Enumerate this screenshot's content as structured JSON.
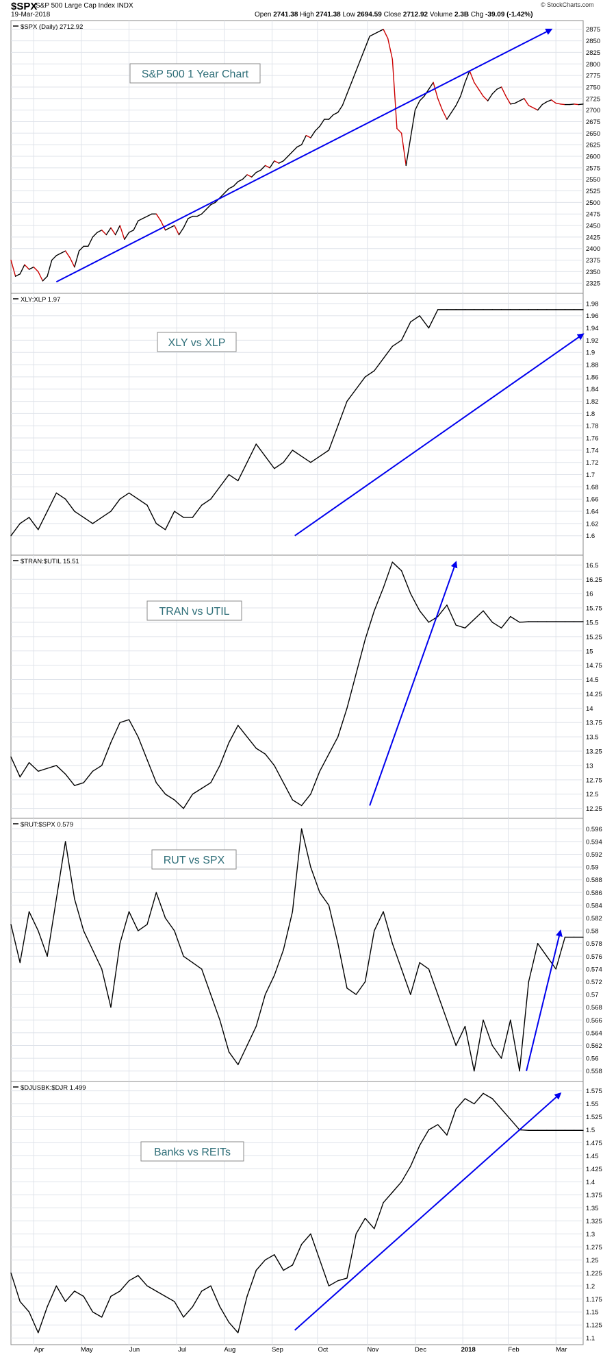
{
  "header": {
    "symbol": "$SPX",
    "description": "S&P 500 Large Cap Index INDX",
    "date": "19-Mar-2018",
    "open_label": "Open",
    "open": "2741.38",
    "high_label": "High",
    "high": "2741.38",
    "low_label": "Low",
    "low": "2694.59",
    "close_label": "Close",
    "close": "2712.92",
    "volume_label": "Volume",
    "volume": "2.3B",
    "chg_label": "Chg",
    "chg": "-39.09 (-1.42%)",
    "credit": "© StockCharts.com"
  },
  "colors": {
    "price_line": "#000000",
    "down_line": "#cc0000",
    "trend_arrow": "#0000ee",
    "grid": "#dfe3ea",
    "annotation_text": "#2e6e78",
    "axis_text": "#000000"
  },
  "chart_data": [
    {
      "type": "line",
      "legend": "$SPX (Daily) 2712.92",
      "annotation": "S&P 500 1 Year Chart",
      "ylim": [
        2312,
        2885
      ],
      "yticks": [
        2325,
        2350,
        2375,
        2400,
        2425,
        2450,
        2475,
        2500,
        2525,
        2550,
        2575,
        2600,
        2625,
        2650,
        2675,
        2700,
        2725,
        2750,
        2775,
        2800,
        2825,
        2850,
        2875
      ],
      "x": [
        0,
        2,
        4,
        6,
        8,
        10,
        12,
        14,
        16,
        18,
        20,
        22,
        24,
        26,
        28,
        30,
        32,
        34,
        36,
        38,
        40,
        42,
        44,
        46,
        48,
        50,
        52,
        54,
        56,
        58,
        60,
        62,
        64,
        66,
        68,
        70,
        72,
        74,
        76,
        78,
        80,
        82,
        84,
        86,
        88,
        90,
        92,
        94,
        96,
        98,
        100,
        102,
        104,
        106,
        108,
        110,
        112,
        114,
        116,
        118,
        120,
        122,
        124,
        126,
        128,
        130,
        132,
        134,
        136,
        138,
        140,
        142,
        144,
        146,
        148,
        150,
        152,
        154,
        156,
        158,
        160,
        162,
        164,
        166,
        168,
        170,
        172,
        174,
        176,
        178,
        180,
        182,
        184,
        186,
        188,
        190,
        192,
        194,
        196,
        198,
        200,
        202,
        204,
        206,
        208,
        210,
        212,
        214,
        216,
        218,
        220,
        222,
        224,
        226,
        228,
        230,
        232,
        234,
        236,
        238,
        240,
        242,
        244,
        246,
        248,
        250,
        252
      ],
      "values": [
        2375,
        2340,
        2345,
        2365,
        2355,
        2360,
        2350,
        2330,
        2340,
        2375,
        2385,
        2390,
        2395,
        2380,
        2360,
        2395,
        2405,
        2405,
        2425,
        2435,
        2440,
        2430,
        2445,
        2430,
        2450,
        2420,
        2435,
        2440,
        2460,
        2465,
        2470,
        2475,
        2475,
        2460,
        2440,
        2445,
        2450,
        2430,
        2445,
        2465,
        2470,
        2470,
        2475,
        2485,
        2495,
        2500,
        2510,
        2520,
        2530,
        2535,
        2545,
        2550,
        2560,
        2555,
        2565,
        2570,
        2580,
        2575,
        2590,
        2585,
        2590,
        2600,
        2610,
        2620,
        2625,
        2645,
        2640,
        2655,
        2665,
        2680,
        2680,
        2690,
        2695,
        2710,
        2735,
        2760,
        2785,
        2810,
        2835,
        2860,
        2865,
        2870,
        2875,
        2855,
        2810,
        2660,
        2650,
        2580,
        2640,
        2700,
        2720,
        2730,
        2745,
        2760,
        2725,
        2700,
        2680,
        2695,
        2710,
        2730,
        2760,
        2785,
        2760,
        2745,
        2730,
        2720,
        2735,
        2745,
        2750,
        2730,
        2713,
        2715,
        2720,
        2725,
        2710,
        2705,
        2700,
        2712,
        2718,
        2722,
        2715,
        2713,
        2712,
        2712,
        2713,
        2712,
        2713
      ],
      "trend_arrow": {
        "from": [
          20,
          2328
        ],
        "to": [
          238,
          2875
        ]
      }
    },
    {
      "type": "line",
      "legend": "XLY:XLP 1.97",
      "annotation": "XLY vs XLP",
      "ylim": [
        1.575,
        1.99
      ],
      "yticks": [
        1.6,
        1.62,
        1.64,
        1.66,
        1.68,
        1.7,
        1.72,
        1.74,
        1.76,
        1.78,
        1.8,
        1.82,
        1.84,
        1.86,
        1.88,
        1.9,
        1.92,
        1.94,
        1.96,
        1.98
      ],
      "x": [
        0,
        4,
        8,
        12,
        16,
        20,
        24,
        28,
        32,
        36,
        40,
        44,
        48,
        52,
        56,
        60,
        64,
        68,
        72,
        76,
        80,
        84,
        88,
        92,
        96,
        100,
        104,
        108,
        112,
        116,
        120,
        124,
        128,
        132,
        136,
        140,
        144,
        148,
        152,
        156,
        160,
        164,
        168,
        172,
        176,
        180,
        184,
        188,
        192,
        196,
        200,
        204,
        208,
        212,
        216,
        220,
        224,
        228,
        232,
        236,
        240,
        244,
        248,
        252
      ],
      "values": [
        1.6,
        1.62,
        1.63,
        1.61,
        1.64,
        1.67,
        1.66,
        1.64,
        1.63,
        1.62,
        1.63,
        1.64,
        1.66,
        1.67,
        1.66,
        1.65,
        1.62,
        1.61,
        1.64,
        1.63,
        1.63,
        1.65,
        1.66,
        1.68,
        1.7,
        1.69,
        1.72,
        1.75,
        1.73,
        1.71,
        1.72,
        1.74,
        1.73,
        1.72,
        1.73,
        1.74,
        1.78,
        1.82,
        1.84,
        1.86,
        1.87,
        1.89,
        1.91,
        1.92,
        1.95,
        1.96,
        1.94,
        1.97,
        1.97,
        1.97,
        1.97,
        1.97,
        1.97,
        1.97,
        1.97,
        1.97,
        1.97,
        1.97,
        1.97,
        1.97,
        1.97,
        1.97,
        1.97,
        1.97
      ],
      "trend_arrow": {
        "from": [
          125,
          1.6
        ],
        "to": [
          252,
          1.93
        ]
      }
    },
    {
      "type": "line",
      "legend": "$TRAN:$UTIL 15.51",
      "annotation": "TRAN vs UTIL",
      "ylim": [
        12.15,
        16.6
      ],
      "yticks": [
        12.25,
        12.5,
        12.75,
        13.0,
        13.25,
        13.5,
        13.75,
        14.0,
        14.25,
        14.5,
        14.75,
        15.0,
        15.25,
        15.5,
        15.75,
        16.0,
        16.25,
        16.5
      ],
      "x": [
        0,
        4,
        8,
        12,
        16,
        20,
        24,
        28,
        32,
        36,
        40,
        44,
        48,
        52,
        56,
        60,
        64,
        68,
        72,
        76,
        80,
        84,
        88,
        92,
        96,
        100,
        104,
        108,
        112,
        116,
        120,
        124,
        128,
        132,
        136,
        140,
        144,
        148,
        152,
        156,
        160,
        164,
        168,
        172,
        176,
        180,
        184,
        188,
        192,
        196,
        200,
        204,
        208,
        212,
        216,
        220,
        224,
        228,
        232,
        236,
        240,
        244,
        248,
        252
      ],
      "values": [
        13.15,
        12.8,
        13.05,
        12.9,
        12.95,
        13.0,
        12.85,
        12.65,
        12.7,
        12.9,
        13.0,
        13.4,
        13.75,
        13.8,
        13.5,
        13.1,
        12.7,
        12.5,
        12.4,
        12.25,
        12.5,
        12.6,
        12.7,
        13.0,
        13.4,
        13.7,
        13.5,
        13.3,
        13.2,
        13.0,
        12.7,
        12.4,
        12.3,
        12.5,
        12.9,
        13.2,
        13.5,
        14.0,
        14.6,
        15.2,
        15.7,
        16.1,
        16.55,
        16.4,
        16.0,
        15.7,
        15.5,
        15.6,
        15.8,
        15.45,
        15.4,
        15.55,
        15.7,
        15.5,
        15.4,
        15.6,
        15.5,
        15.51,
        15.51,
        15.51,
        15.51,
        15.51,
        15.51,
        15.51
      ],
      "trend_arrow": {
        "from": [
          158,
          12.3
        ],
        "to": [
          196,
          16.55
        ]
      }
    },
    {
      "type": "line",
      "legend": "$RUT:$SPX 0.579",
      "annotation": "RUT vs SPX",
      "ylim": [
        0.557,
        0.597
      ],
      "yticks": [
        0.558,
        0.56,
        0.562,
        0.564,
        0.566,
        0.568,
        0.57,
        0.572,
        0.574,
        0.576,
        0.578,
        0.58,
        0.582,
        0.584,
        0.586,
        0.588,
        0.59,
        0.592,
        0.594,
        0.596
      ],
      "x": [
        0,
        4,
        8,
        12,
        16,
        20,
        24,
        28,
        32,
        36,
        40,
        44,
        48,
        52,
        56,
        60,
        64,
        68,
        72,
        76,
        80,
        84,
        88,
        92,
        96,
        100,
        104,
        108,
        112,
        116,
        120,
        124,
        128,
        132,
        136,
        140,
        144,
        148,
        152,
        156,
        160,
        164,
        168,
        172,
        176,
        180,
        184,
        188,
        192,
        196,
        200,
        204,
        208,
        212,
        216,
        220,
        224,
        228,
        232,
        236,
        240,
        244,
        248,
        252
      ],
      "values": [
        0.581,
        0.575,
        0.583,
        0.58,
        0.576,
        0.585,
        0.594,
        0.585,
        0.58,
        0.577,
        0.574,
        0.568,
        0.578,
        0.583,
        0.58,
        0.581,
        0.586,
        0.582,
        0.58,
        0.576,
        0.575,
        0.574,
        0.57,
        0.566,
        0.561,
        0.559,
        0.562,
        0.565,
        0.57,
        0.573,
        0.577,
        0.583,
        0.596,
        0.59,
        0.586,
        0.584,
        0.578,
        0.571,
        0.57,
        0.572,
        0.58,
        0.583,
        0.578,
        0.574,
        0.57,
        0.575,
        0.574,
        0.57,
        0.566,
        0.562,
        0.565,
        0.558,
        0.566,
        0.562,
        0.56,
        0.566,
        0.558,
        0.572,
        0.578,
        0.576,
        0.574,
        0.579,
        0.579,
        0.579
      ],
      "trend_arrow": {
        "from": [
          227,
          0.558
        ],
        "to": [
          242,
          0.58
        ]
      }
    },
    {
      "type": "line",
      "legend": "$DJUSBK:$DJR 1.499",
      "annotation": "Banks vs REITs",
      "ylim": [
        1.095,
        1.585
      ],
      "yticks": [
        1.1,
        1.125,
        1.15,
        1.175,
        1.2,
        1.225,
        1.25,
        1.275,
        1.3,
        1.325,
        1.35,
        1.375,
        1.4,
        1.425,
        1.45,
        1.475,
        1.5,
        1.525,
        1.55,
        1.575
      ],
      "x": [
        0,
        4,
        8,
        12,
        16,
        20,
        24,
        28,
        32,
        36,
        40,
        44,
        48,
        52,
        56,
        60,
        64,
        68,
        72,
        76,
        80,
        84,
        88,
        92,
        96,
        100,
        104,
        108,
        112,
        116,
        120,
        124,
        128,
        132,
        136,
        140,
        144,
        148,
        152,
        156,
        160,
        164,
        168,
        172,
        176,
        180,
        184,
        188,
        192,
        196,
        200,
        204,
        208,
        212,
        216,
        220,
        224,
        228,
        232,
        236,
        240,
        244,
        248,
        252
      ],
      "values": [
        1.225,
        1.17,
        1.15,
        1.11,
        1.16,
        1.2,
        1.17,
        1.19,
        1.18,
        1.15,
        1.14,
        1.18,
        1.19,
        1.21,
        1.22,
        1.2,
        1.19,
        1.18,
        1.17,
        1.14,
        1.16,
        1.19,
        1.2,
        1.16,
        1.13,
        1.11,
        1.18,
        1.23,
        1.25,
        1.26,
        1.23,
        1.24,
        1.28,
        1.3,
        1.25,
        1.2,
        1.21,
        1.215,
        1.3,
        1.33,
        1.31,
        1.36,
        1.38,
        1.4,
        1.43,
        1.47,
        1.5,
        1.51,
        1.49,
        1.54,
        1.56,
        1.55,
        1.57,
        1.56,
        1.54,
        1.52,
        1.5,
        1.499,
        1.499,
        1.499,
        1.499,
        1.499,
        1.499,
        1.499
      ],
      "trend_arrow": {
        "from": [
          125,
          1.115
        ],
        "to": [
          242,
          1.57
        ]
      }
    }
  ],
  "x_axis": {
    "labels": [
      "Apr",
      "May",
      "Jun",
      "Jul",
      "Aug",
      "Sep",
      "Oct",
      "Nov",
      "Dec",
      "2018",
      "Feb",
      "Mar"
    ],
    "positions": [
      10,
      31,
      52,
      73,
      94,
      115,
      135,
      157,
      178,
      199,
      219,
      240
    ],
    "xlim": [
      0,
      252
    ]
  }
}
